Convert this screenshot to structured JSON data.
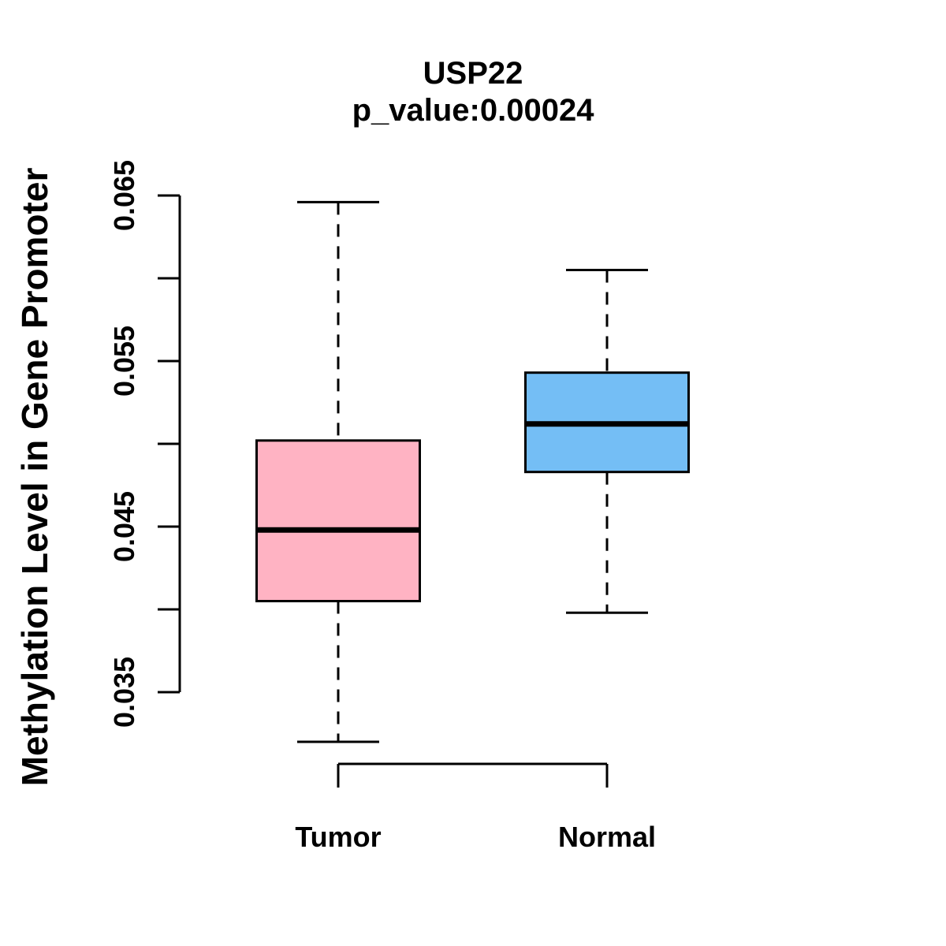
{
  "header": {
    "title": "USP22",
    "subtitle": "p_value:0.00024"
  },
  "chart_data": {
    "type": "boxplot",
    "title": "USP22",
    "subtitle": "p_value:0.00024",
    "xlabel": "",
    "ylabel": "Methylation Level in Gene Promoter",
    "categories": [
      "Tumor",
      "Normal"
    ],
    "series": [
      {
        "name": "Tumor",
        "color": "#ffb3c3",
        "whisker_low": 0.032,
        "q1": 0.0405,
        "median": 0.0448,
        "q3": 0.0502,
        "whisker_high": 0.0646
      },
      {
        "name": "Normal",
        "color": "#74bef5",
        "whisker_low": 0.0398,
        "q1": 0.0483,
        "median": 0.0512,
        "q3": 0.0543,
        "whisker_high": 0.0605
      }
    ],
    "y_axis": {
      "min": 0.035,
      "max": 0.065,
      "tick_step": 0.005,
      "labeled_ticks": [
        "0.035",
        "0.045",
        "0.055",
        "0.065"
      ]
    },
    "ylim": [
      0.035,
      0.065
    ],
    "grid": false,
    "legend": false,
    "styles": {
      "box_border_color": "#000000",
      "median_color": "#000000",
      "axis_color": "#000000",
      "whisker_style": "dashed"
    }
  }
}
